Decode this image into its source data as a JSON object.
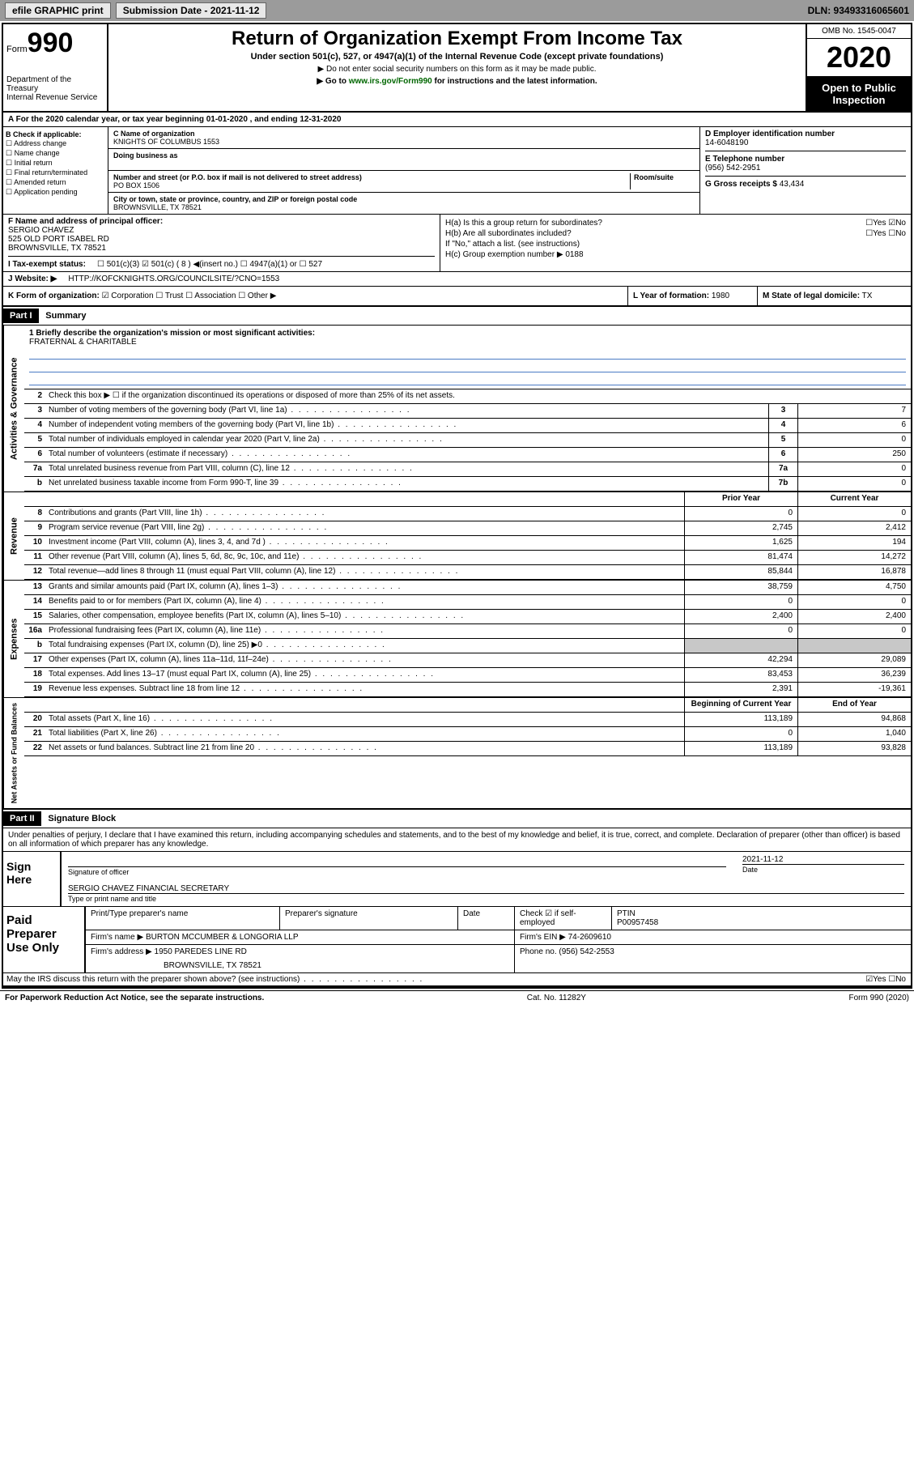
{
  "toolbar": {
    "efile": "efile GRAPHIC print",
    "submission_label": "Submission Date - 2021-11-12",
    "dln": "DLN: 93493316065601"
  },
  "header": {
    "form_word": "Form",
    "form_num": "990",
    "dept1": "Department of the Treasury",
    "dept2": "Internal Revenue Service",
    "title": "Return of Organization Exempt From Income Tax",
    "sub1": "Under section 501(c), 527, or 4947(a)(1) of the Internal Revenue Code (except private foundations)",
    "sub2": "▶ Do not enter social security numbers on this form as it may be made public.",
    "sub3_pre": "▶ Go to ",
    "sub3_link": "www.irs.gov/Form990",
    "sub3_post": " for instructions and the latest information.",
    "omb": "OMB No. 1545-0047",
    "year": "2020",
    "open1": "Open to Public",
    "open2": "Inspection"
  },
  "line_a": "A For the 2020 calendar year, or tax year beginning 01-01-2020   , and ending 12-31-2020",
  "box_b": {
    "title": "B Check if applicable:",
    "opts": [
      "☐ Address change",
      "☐ Name change",
      "☐ Initial return",
      "☐ Final return/terminated",
      "☐ Amended return",
      "☐ Application pending"
    ]
  },
  "box_c": {
    "name_lab": "C Name of organization",
    "name": "KNIGHTS OF COLUMBUS 1553",
    "dba_lab": "Doing business as",
    "addr_lab": "Number and street (or P.O. box if mail is not delivered to street address)",
    "room_lab": "Room/suite",
    "addr": "PO BOX 1506",
    "city_lab": "City or town, state or province, country, and ZIP or foreign postal code",
    "city": "BROWNSVILLE, TX  78521"
  },
  "box_d": {
    "ein_lab": "D Employer identification number",
    "ein": "14-6048190",
    "tel_lab": "E Telephone number",
    "tel": "(956) 542-2951",
    "gross_lab": "G Gross receipts $",
    "gross": "43,434"
  },
  "box_f": {
    "lab": "F  Name and address of principal officer:",
    "name": "SERGIO CHAVEZ",
    "addr1": "525 OLD PORT ISABEL RD",
    "addr2": "BROWNSVILLE, TX  78521"
  },
  "box_h": {
    "ha": "H(a)  Is this a group return for subordinates?",
    "ha_ans": "☐Yes ☑No",
    "hb": "H(b)  Are all subordinates included?",
    "hb_ans": "☐Yes ☐No",
    "hb_note": "If \"No,\" attach a list. (see instructions)",
    "hc": "H(c)  Group exemption number ▶",
    "hc_val": "0188"
  },
  "box_i": {
    "lab": "I  Tax-exempt status:",
    "opts": "☐ 501(c)(3)   ☑ 501(c) ( 8 ) ◀(insert no.)   ☐ 4947(a)(1) or   ☐ 527"
  },
  "box_j": {
    "lab": "J  Website: ▶",
    "url": "HTTP://KOFCKNIGHTS.ORG/COUNCILSITE/?CNO=1553"
  },
  "box_k": {
    "lab": "K Form of organization:",
    "opts": "☑ Corporation  ☐ Trust  ☐ Association  ☐ Other ▶"
  },
  "box_l": {
    "lab": "L Year of formation:",
    "val": "1980"
  },
  "box_m": {
    "lab": "M State of legal domicile:",
    "val": "TX"
  },
  "part1": {
    "hdr": "Part I",
    "title": "Summary"
  },
  "mission": {
    "lab": "1  Briefly describe the organization's mission or most significant activities:",
    "text": "FRATERNAL & CHARITABLE"
  },
  "gov": {
    "q2": "Check this box ▶ ☐  if the organization discontinued its operations or disposed of more than 25% of its net assets.",
    "rows": [
      {
        "n": "3",
        "t": "Number of voting members of the governing body (Part VI, line 1a)",
        "b": "3",
        "v": "7"
      },
      {
        "n": "4",
        "t": "Number of independent voting members of the governing body (Part VI, line 1b)",
        "b": "4",
        "v": "6"
      },
      {
        "n": "5",
        "t": "Total number of individuals employed in calendar year 2020 (Part V, line 2a)",
        "b": "5",
        "v": "0"
      },
      {
        "n": "6",
        "t": "Total number of volunteers (estimate if necessary)",
        "b": "6",
        "v": "250"
      },
      {
        "n": "7a",
        "t": "Total unrelated business revenue from Part VIII, column (C), line 12",
        "b": "7a",
        "v": "0"
      },
      {
        "n": "b",
        "t": "Net unrelated business taxable income from Form 990-T, line 39",
        "b": "7b",
        "v": "0"
      }
    ]
  },
  "rev_hdr": {
    "prior": "Prior Year",
    "current": "Current Year"
  },
  "rev": [
    {
      "n": "8",
      "t": "Contributions and grants (Part VIII, line 1h)",
      "p": "0",
      "c": "0"
    },
    {
      "n": "9",
      "t": "Program service revenue (Part VIII, line 2g)",
      "p": "2,745",
      "c": "2,412"
    },
    {
      "n": "10",
      "t": "Investment income (Part VIII, column (A), lines 3, 4, and 7d )",
      "p": "1,625",
      "c": "194"
    },
    {
      "n": "11",
      "t": "Other revenue (Part VIII, column (A), lines 5, 6d, 8c, 9c, 10c, and 11e)",
      "p": "81,474",
      "c": "14,272"
    },
    {
      "n": "12",
      "t": "Total revenue—add lines 8 through 11 (must equal Part VIII, column (A), line 12)",
      "p": "85,844",
      "c": "16,878"
    }
  ],
  "exp": [
    {
      "n": "13",
      "t": "Grants and similar amounts paid (Part IX, column (A), lines 1–3)",
      "p": "38,759",
      "c": "4,750"
    },
    {
      "n": "14",
      "t": "Benefits paid to or for members (Part IX, column (A), line 4)",
      "p": "0",
      "c": "0"
    },
    {
      "n": "15",
      "t": "Salaries, other compensation, employee benefits (Part IX, column (A), lines 5–10)",
      "p": "2,400",
      "c": "2,400"
    },
    {
      "n": "16a",
      "t": "Professional fundraising fees (Part IX, column (A), line 11e)",
      "p": "0",
      "c": "0"
    },
    {
      "n": "b",
      "t": "Total fundraising expenses (Part IX, column (D), line 25) ▶0",
      "p": "",
      "c": "",
      "shade": true
    },
    {
      "n": "17",
      "t": "Other expenses (Part IX, column (A), lines 11a–11d, 11f–24e)",
      "p": "42,294",
      "c": "29,089"
    },
    {
      "n": "18",
      "t": "Total expenses. Add lines 13–17 (must equal Part IX, column (A), line 25)",
      "p": "83,453",
      "c": "36,239"
    },
    {
      "n": "19",
      "t": "Revenue less expenses. Subtract line 18 from line 12",
      "p": "2,391",
      "c": "-19,361"
    }
  ],
  "na_hdr": {
    "beg": "Beginning of Current Year",
    "end": "End of Year"
  },
  "na": [
    {
      "n": "20",
      "t": "Total assets (Part X, line 16)",
      "p": "113,189",
      "c": "94,868"
    },
    {
      "n": "21",
      "t": "Total liabilities (Part X, line 26)",
      "p": "0",
      "c": "1,040"
    },
    {
      "n": "22",
      "t": "Net assets or fund balances. Subtract line 21 from line 20",
      "p": "113,189",
      "c": "93,828"
    }
  ],
  "part2": {
    "hdr": "Part II",
    "title": "Signature Block"
  },
  "penalty": "Under penalties of perjury, I declare that I have examined this return, including accompanying schedules and statements, and to the best of my knowledge and belief, it is true, correct, and complete. Declaration of preparer (other than officer) is based on all information of which preparer has any knowledge.",
  "sign": {
    "here": "Sign Here",
    "sig_lab": "Signature of officer",
    "date": "2021-11-12",
    "date_lab": "Date",
    "name": "SERGIO CHAVEZ FINANCIAL SECRETARY",
    "name_lab": "Type or print name and title"
  },
  "prep": {
    "title": "Paid Preparer Use Only",
    "h1": "Print/Type preparer's name",
    "h2": "Preparer's signature",
    "h3": "Date",
    "h4": "Check ☑ if self-employed",
    "h5_lab": "PTIN",
    "h5": "P00957458",
    "firm_lab": "Firm's name    ▶",
    "firm": "BURTON MCCUMBER & LONGORIA LLP",
    "ein_lab": "Firm's EIN ▶",
    "ein": "74-2609610",
    "addr_lab": "Firm's address ▶",
    "addr1": "1950 PAREDES LINE RD",
    "addr2": "BROWNSVILLE, TX  78521",
    "tel_lab": "Phone no.",
    "tel": "(956) 542-2553"
  },
  "discuss": {
    "q": "May the IRS discuss this return with the preparer shown above? (see instructions)",
    "ans": "☑Yes ☐No"
  },
  "footer": {
    "left": "For Paperwork Reduction Act Notice, see the separate instructions.",
    "mid": "Cat. No. 11282Y",
    "right": "Form 990 (2020)"
  },
  "side_labels": {
    "gov": "Activities & Governance",
    "rev": "Revenue",
    "exp": "Expenses",
    "na": "Net Assets or Fund Balances"
  }
}
